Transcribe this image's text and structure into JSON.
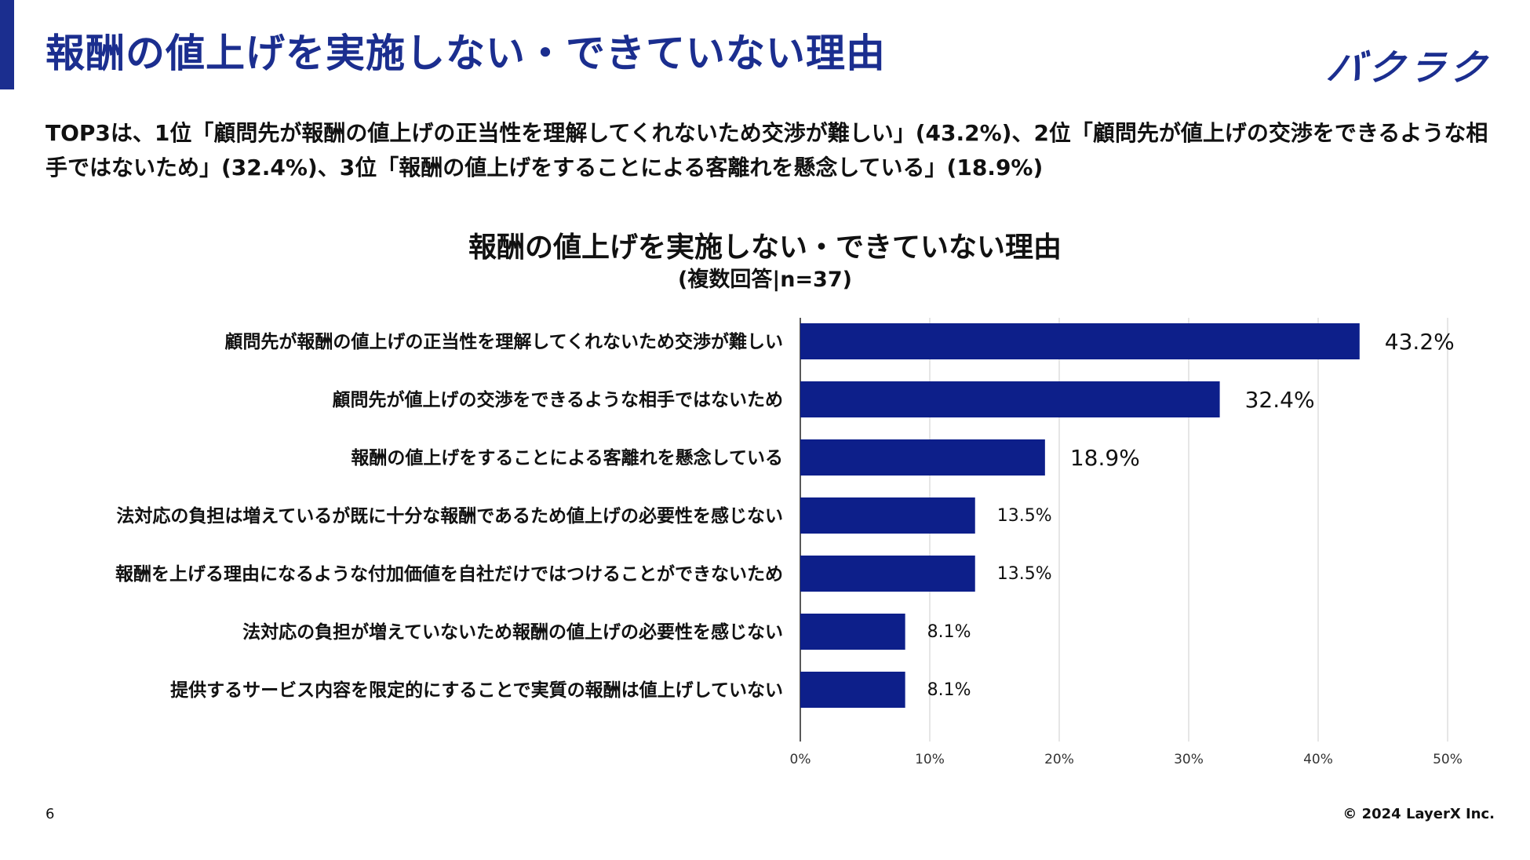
{
  "page": {
    "title": "報酬の値上げを実施しない・できていない理由",
    "logo_text": "バクラク",
    "summary": "TOP3は、1位「顧問先が報酬の値上げの正当性を理解してくれないため交渉が難しい」(43.2%)、2位「顧問先が値上げの交渉をできるような相手ではないため」(32.4%)、3位「報酬の値上げをすることによる客離れを懸念している」(18.9%)",
    "page_number": "6",
    "copyright": "© 2024 LayerX Inc."
  },
  "colors": {
    "accent": "#1b2e8f",
    "bar": "#0d1f8a",
    "grid": "#cccccc"
  },
  "chart_data": {
    "type": "bar",
    "orientation": "horizontal",
    "title": "報酬の値上げを実施しない・できていない理由",
    "subtitle": "(複数回答|n=37)",
    "categories": [
      "顧問先が報酬の値上げの正当性を理解してくれないため交渉が難しい",
      "顧問先が値上げの交渉をできるような相手ではないため",
      "報酬の値上げをすることによる客離れを懸念している",
      "法対応の負担は増えているが既に十分な報酬であるため値上げの必要性を感じない",
      "報酬を上げる理由になるような付加価値を自社だけではつけることができないため",
      "法対応の負担が増えていないため報酬の値上げの必要性を感じない",
      "提供するサービス内容を限定的にすることで実質の報酬は値上げしていない"
    ],
    "values": [
      43.2,
      32.4,
      18.9,
      13.5,
      13.5,
      8.1,
      8.1
    ],
    "value_labels": [
      "43.2%",
      "32.4%",
      "18.9%",
      "13.5%",
      "13.5%",
      "8.1%",
      "8.1%"
    ],
    "xlim": [
      0,
      50
    ],
    "ticks": [
      "0%",
      "10%",
      "20%",
      "30%",
      "40%",
      "50%"
    ],
    "xlabel": "",
    "ylabel": "",
    "grid": true,
    "legend": "none"
  }
}
